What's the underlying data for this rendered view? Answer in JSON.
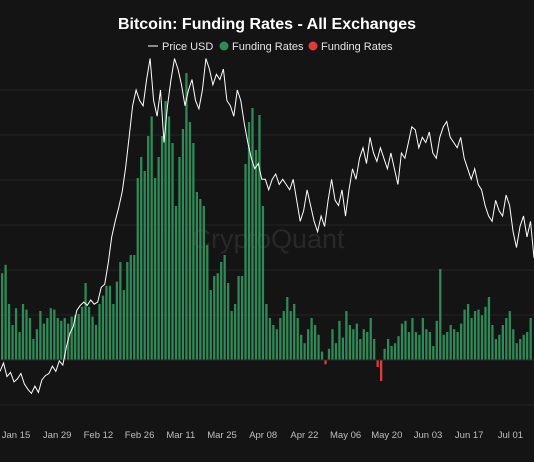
{
  "chart_data": {
    "type": "bar",
    "title": "Bitcoin: Funding Rates - All Exchanges",
    "watermark": "CryptoQuant",
    "legend": [
      {
        "name": "Price USD",
        "color": "#ffffff",
        "kind": "line"
      },
      {
        "name": "Funding Rates",
        "color": "#2e8b57",
        "kind": "dot"
      },
      {
        "name": "Funding Rates",
        "color": "#e03b3b",
        "kind": "dot"
      }
    ],
    "x_tick_labels": [
      "Jan 15",
      "Jan 29",
      "Feb 12",
      "Feb 26",
      "Mar 11",
      "Mar 25",
      "Apr 08",
      "Apr 22",
      "May 06",
      "May 20",
      "Jun 03",
      "Jun 17",
      "Jul 01"
    ],
    "grid": true,
    "legend_position": "top-center",
    "price_series": {
      "name": "Price USD",
      "color": "#ffffff",
      "values": [
        32,
        40,
        27,
        31,
        22,
        25,
        30,
        20,
        15,
        11,
        18,
        12,
        24,
        28,
        30,
        37,
        32,
        42,
        38,
        55,
        68,
        75,
        90,
        95,
        98,
        95,
        100,
        96,
        98,
        112,
        115,
        135,
        160,
        175,
        188,
        203,
        226,
        255,
        285,
        300,
        290,
        285,
        310,
        330,
        290,
        275,
        300,
        250,
        285,
        310,
        330,
        320,
        305,
        285,
        300,
        310,
        290,
        282,
        300,
        330,
        320,
        305,
        315,
        310,
        320,
        290,
        285,
        275,
        300,
        290,
        268,
        250,
        235,
        225,
        230,
        215,
        215,
        205,
        215,
        220,
        210,
        215,
        210,
        205,
        215,
        195,
        175,
        185,
        205,
        190,
        175,
        165,
        180,
        170,
        195,
        215,
        195,
        190,
        205,
        180,
        205,
        225,
        215,
        235,
        245,
        230,
        255,
        240,
        232,
        245,
        235,
        225,
        240,
        225,
        210,
        240,
        235,
        250,
        265,
        262,
        245,
        255,
        250,
        260,
        240,
        235,
        255,
        265,
        270,
        255,
        250,
        245,
        255,
        235,
        225,
        215,
        225,
        210,
        205,
        190,
        180,
        175,
        195,
        185,
        180,
        200,
        190,
        165,
        150,
        170,
        180,
        160,
        175,
        140
      ]
    },
    "funding_series": {
      "name": "Funding Rates",
      "positive_color": "#2e8b57",
      "negative_color": "#e03b3b",
      "values": [
        62,
        68,
        40,
        25,
        37,
        20,
        40,
        36,
        30,
        15,
        22,
        35,
        26,
        30,
        37,
        36,
        30,
        28,
        30,
        26,
        31,
        32,
        33,
        38,
        55,
        38,
        31,
        25,
        40,
        46,
        53,
        53,
        40,
        56,
        70,
        50,
        70,
        75,
        75,
        130,
        145,
        135,
        160,
        174,
        130,
        145,
        160,
        185,
        174,
        155,
        110,
        145,
        165,
        205,
        170,
        155,
        120,
        115,
        110,
        82,
        50,
        60,
        62,
        70,
        75,
        55,
        35,
        40,
        60,
        60,
        140,
        170,
        180,
        150,
        175,
        110,
        40,
        30,
        25,
        22,
        30,
        35,
        45,
        35,
        40,
        30,
        18,
        12,
        22,
        30,
        25,
        18,
        6,
        -3,
        8,
        22,
        12,
        28,
        16,
        35,
        25,
        22,
        26,
        15,
        22,
        20,
        30,
        15,
        -5,
        -15,
        8,
        15,
        10,
        12,
        17,
        26,
        28,
        20,
        30,
        20,
        18,
        30,
        22,
        20,
        10,
        28,
        65,
        18,
        20,
        25,
        22,
        20,
        26,
        36,
        40,
        30,
        35,
        36,
        32,
        38,
        45,
        25,
        15,
        18,
        25,
        30,
        35,
        22,
        12,
        15,
        18,
        20,
        30
      ]
    }
  }
}
